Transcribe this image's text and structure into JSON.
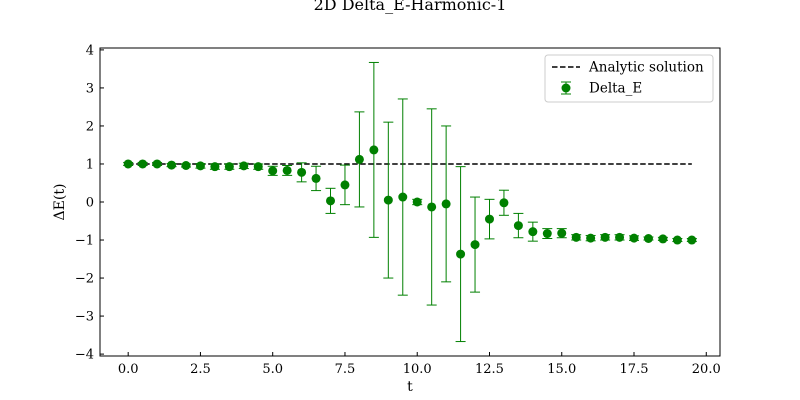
{
  "chart_data": {
    "type": "scatter",
    "title": "2D Delta_E-Harmonic-1",
    "xlabel": "t",
    "ylabel": "ΔE(t)",
    "xlim": [
      -0.975,
      20.475
    ],
    "ylim": [
      -4.05,
      4.05
    ],
    "x_ticks": [
      0,
      2.5,
      5,
      7.5,
      10,
      12.5,
      15,
      17.5,
      20
    ],
    "x_tick_labels": [
      "0.0",
      "2.5",
      "5.0",
      "7.5",
      "10.0",
      "12.5",
      "15.0",
      "17.5",
      "20.0"
    ],
    "y_ticks": [
      -4,
      -3,
      -2,
      -1,
      0,
      1,
      2,
      3,
      4
    ],
    "y_tick_labels": [
      "−4",
      "−3",
      "−2",
      "−1",
      "0",
      "1",
      "2",
      "3",
      "4"
    ],
    "grid": false,
    "legend_position": "upper-right",
    "analytic": {
      "name": "Analytic solution",
      "x": [
        0,
        19.5
      ],
      "y": [
        1,
        1
      ],
      "color": "#000000",
      "style": "dashed"
    },
    "series": [
      {
        "name": "Delta_E",
        "color": "#008000",
        "x": [
          0,
          0.5,
          1,
          1.5,
          2,
          2.5,
          3,
          3.5,
          4,
          4.5,
          5,
          5.5,
          6,
          6.5,
          7,
          7.5,
          8,
          8.5,
          9,
          9.5,
          10,
          10.5,
          11,
          11.5,
          12,
          12.5,
          13,
          13.5,
          14,
          14.5,
          15,
          15.5,
          16,
          16.5,
          17,
          17.5,
          18,
          18.5,
          19,
          19.5
        ],
        "y": [
          1.0,
          1.0,
          1.0,
          0.97,
          0.96,
          0.95,
          0.93,
          0.93,
          0.95,
          0.93,
          0.82,
          0.83,
          0.78,
          0.62,
          0.03,
          0.45,
          1.12,
          1.37,
          0.05,
          0.13,
          0.0,
          -0.13,
          -0.05,
          -1.37,
          -1.12,
          -0.45,
          -0.02,
          -0.62,
          -0.78,
          -0.83,
          -0.82,
          -0.93,
          -0.95,
          -0.93,
          -0.93,
          -0.95,
          -0.96,
          -0.97,
          -1.0,
          -1.0
        ],
        "err": [
          0.04,
          0.04,
          0.04,
          0.04,
          0.04,
          0.06,
          0.07,
          0.07,
          0.07,
          0.07,
          0.12,
          0.13,
          0.25,
          0.32,
          0.33,
          0.52,
          1.25,
          2.3,
          2.05,
          2.58,
          0.07,
          2.58,
          2.05,
          2.3,
          1.25,
          0.52,
          0.33,
          0.32,
          0.25,
          0.13,
          0.12,
          0.07,
          0.07,
          0.07,
          0.07,
          0.06,
          0.04,
          0.04,
          0.04,
          0.04
        ]
      }
    ]
  }
}
